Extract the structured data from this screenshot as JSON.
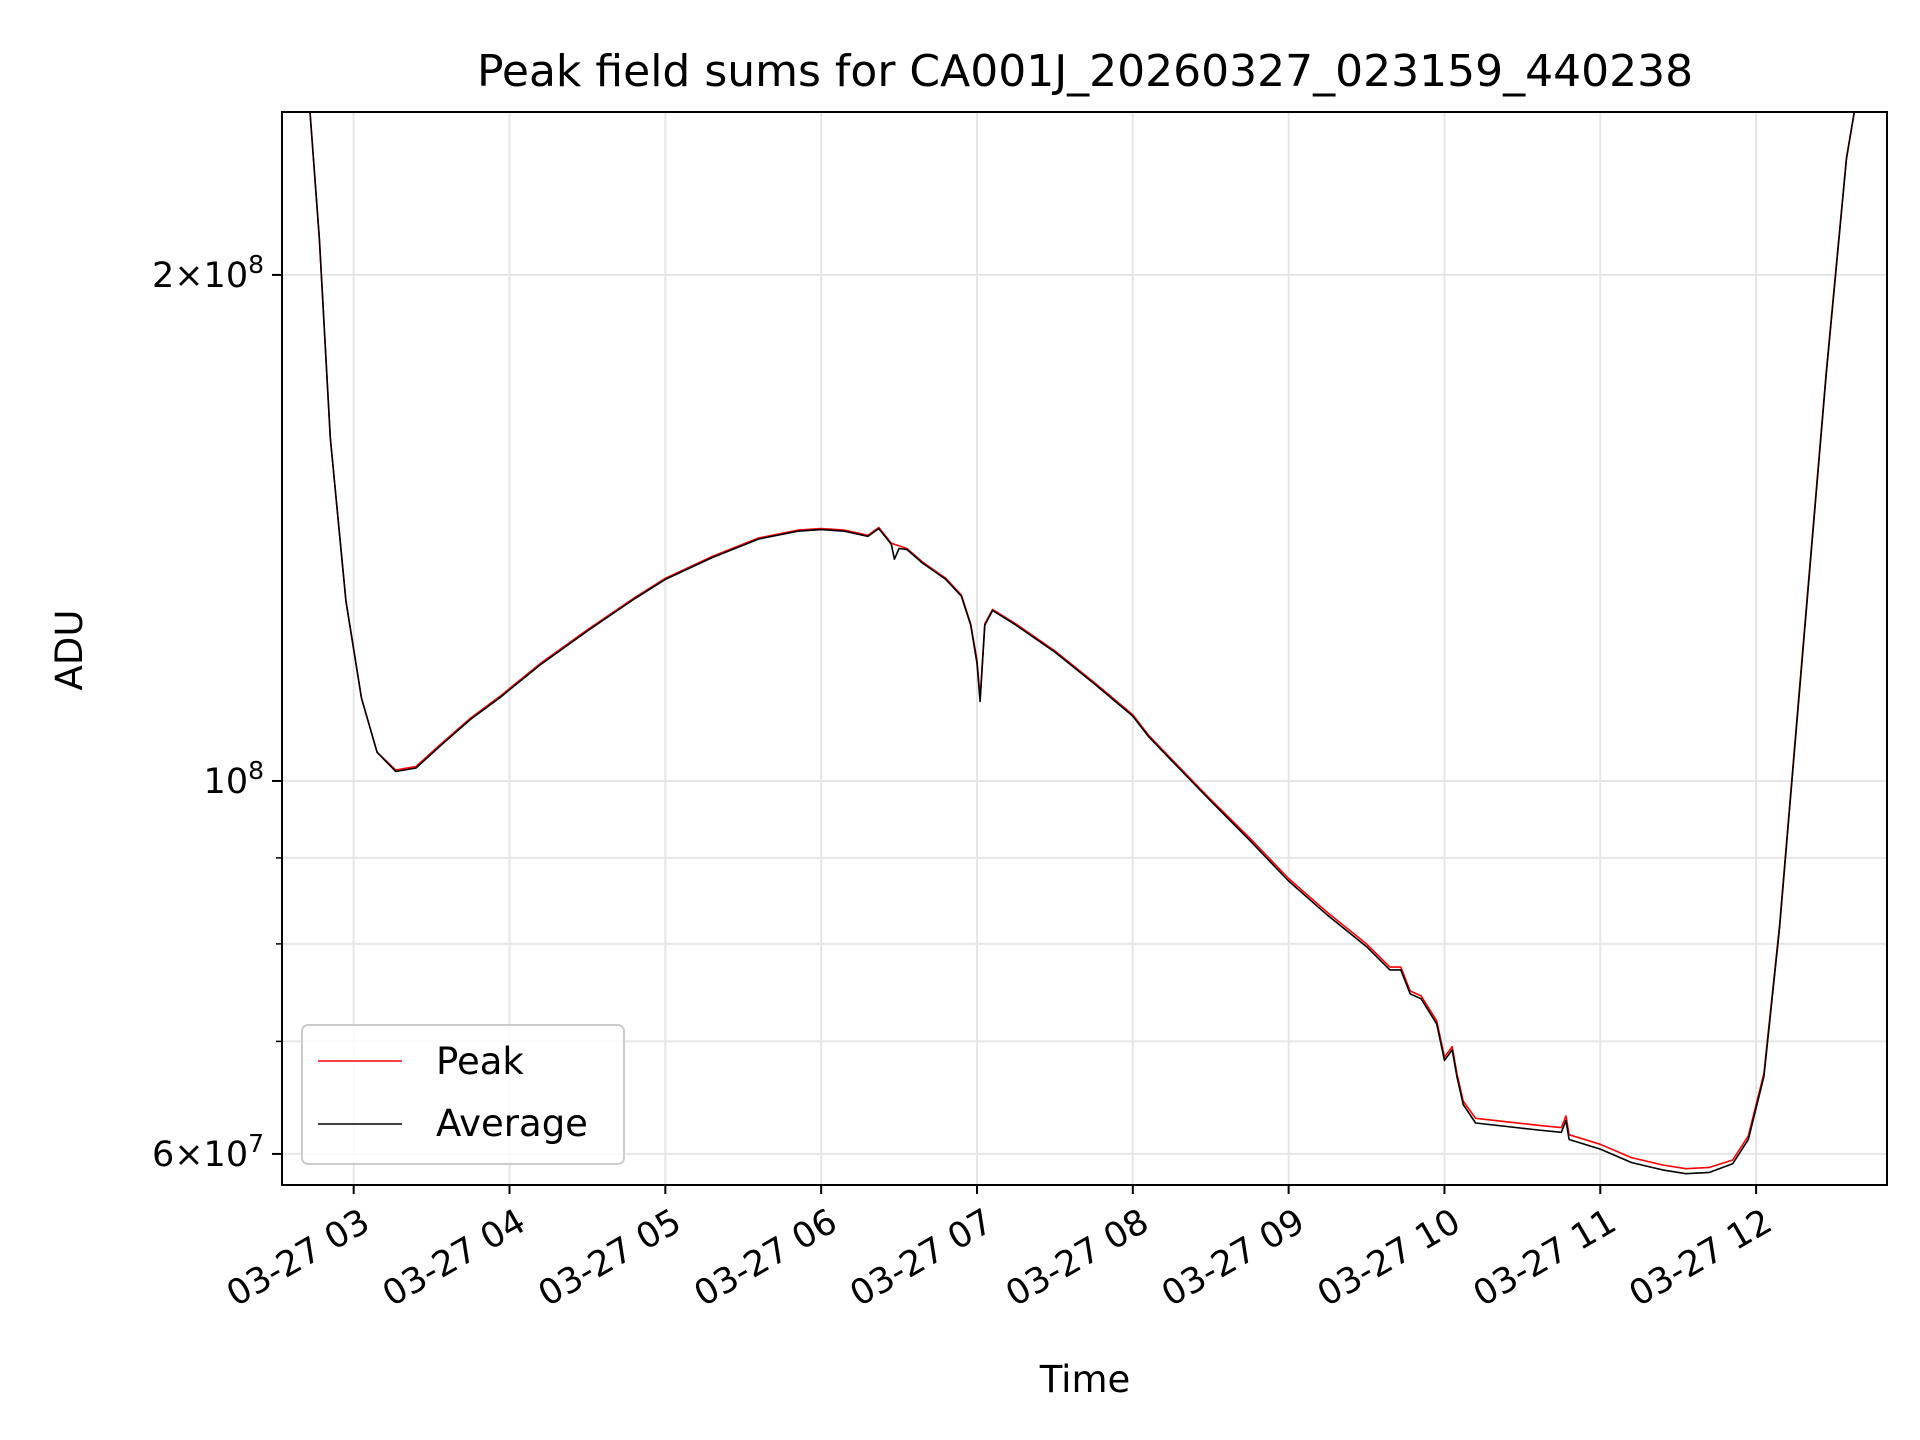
{
  "chart_data": {
    "type": "line",
    "title": "Peak field sums for CA001J_20260327_023159_440238",
    "xlabel": "Time",
    "ylabel": "ADU",
    "yscale": "log",
    "ylim": [
      57500000,
      250000000
    ],
    "xlim": [
      2.54,
      12.84
    ],
    "grid": true,
    "legend_loc": "lower-left",
    "x_ticks": [
      {
        "value": 3,
        "label": "03-27 03"
      },
      {
        "value": 4,
        "label": "03-27 04"
      },
      {
        "value": 5,
        "label": "03-27 05"
      },
      {
        "value": 6,
        "label": "03-27 06"
      },
      {
        "value": 7,
        "label": "03-27 07"
      },
      {
        "value": 8,
        "label": "03-27 08"
      },
      {
        "value": 9,
        "label": "03-27 09"
      },
      {
        "value": 10,
        "label": "03-27 10"
      },
      {
        "value": 11,
        "label": "03-27 11"
      },
      {
        "value": 12,
        "label": "03-27 12"
      }
    ],
    "y_major_ticks": [
      {
        "value": 60000000,
        "base": "6",
        "exp": "7"
      },
      {
        "value": 100000000,
        "base": "",
        "exp": "8"
      },
      {
        "value": 200000000,
        "base": "2",
        "exp": "8"
      }
    ],
    "y_minor_grid": [
      70000000,
      80000000,
      90000000
    ],
    "series": [
      {
        "name": "Peak",
        "color": "#ff0000",
        "points": [
          [
            2.72,
            250000000
          ],
          [
            2.78,
            210000000
          ],
          [
            2.85,
            160000000
          ],
          [
            2.95,
            128000000
          ],
          [
            3.05,
            112000000
          ],
          [
            3.15,
            104000000
          ],
          [
            3.27,
            101500000
          ],
          [
            3.4,
            102000000
          ],
          [
            3.55,
            105000000
          ],
          [
            3.75,
            109000000
          ],
          [
            3.95,
            112500000
          ],
          [
            4.0,
            113500000
          ],
          [
            4.2,
            117500000
          ],
          [
            4.5,
            123000000
          ],
          [
            4.8,
            128500000
          ],
          [
            5.0,
            132000000
          ],
          [
            5.3,
            136000000
          ],
          [
            5.6,
            139500000
          ],
          [
            5.85,
            141000000
          ],
          [
            6.0,
            141300000
          ],
          [
            6.15,
            141000000
          ],
          [
            6.3,
            140000000
          ],
          [
            6.37,
            141500000
          ],
          [
            6.45,
            138500000
          ],
          [
            6.55,
            137500000
          ],
          [
            6.65,
            135000000
          ],
          [
            6.8,
            132000000
          ],
          [
            6.9,
            129000000
          ],
          [
            6.96,
            124000000
          ],
          [
            7.0,
            118000000
          ],
          [
            7.02,
            112000000
          ],
          [
            7.05,
            124000000
          ],
          [
            7.1,
            126500000
          ],
          [
            7.25,
            124000000
          ],
          [
            7.5,
            119500000
          ],
          [
            7.75,
            114500000
          ],
          [
            8.0,
            109500000
          ],
          [
            8.1,
            106500000
          ],
          [
            8.25,
            103000000
          ],
          [
            8.5,
            97500000
          ],
          [
            8.75,
            92500000
          ],
          [
            9.0,
            87500000
          ],
          [
            9.25,
            83500000
          ],
          [
            9.5,
            80000000
          ],
          [
            9.65,
            77500000
          ],
          [
            9.72,
            77500000
          ],
          [
            9.78,
            75000000
          ],
          [
            9.85,
            74500000
          ],
          [
            9.95,
            72000000
          ],
          [
            10.0,
            68500000
          ],
          [
            10.05,
            69500000
          ],
          [
            10.08,
            67000000
          ],
          [
            10.12,
            64500000
          ],
          [
            10.2,
            63000000
          ],
          [
            10.4,
            62700000
          ],
          [
            10.6,
            62400000
          ],
          [
            10.75,
            62200000
          ],
          [
            10.78,
            63200000
          ],
          [
            10.8,
            61600000
          ],
          [
            11.0,
            60800000
          ],
          [
            11.2,
            59700000
          ],
          [
            11.4,
            59100000
          ],
          [
            11.55,
            58800000
          ],
          [
            11.7,
            58900000
          ],
          [
            11.85,
            59500000
          ],
          [
            11.95,
            61500000
          ],
          [
            12.05,
            67000000
          ],
          [
            12.15,
            82000000
          ],
          [
            12.3,
            120000000
          ],
          [
            12.45,
            175000000
          ],
          [
            12.58,
            235000000
          ],
          [
            12.63,
            250000000
          ]
        ]
      },
      {
        "name": "Average",
        "color": "#000000",
        "points": [
          [
            2.72,
            250000000
          ],
          [
            2.78,
            210000000
          ],
          [
            2.85,
            160000000
          ],
          [
            2.95,
            128000000
          ],
          [
            3.05,
            112000000
          ],
          [
            3.15,
            104000000
          ],
          [
            3.27,
            101300000
          ],
          [
            3.4,
            101800000
          ],
          [
            3.55,
            104800000
          ],
          [
            3.75,
            108800000
          ],
          [
            3.95,
            112300000
          ],
          [
            4.0,
            113300000
          ],
          [
            4.2,
            117300000
          ],
          [
            4.5,
            122800000
          ],
          [
            4.8,
            128300000
          ],
          [
            5.0,
            131800000
          ],
          [
            5.3,
            135800000
          ],
          [
            5.6,
            139300000
          ],
          [
            5.85,
            140800000
          ],
          [
            6.0,
            141100000
          ],
          [
            6.15,
            140800000
          ],
          [
            6.3,
            139800000
          ],
          [
            6.37,
            141300000
          ],
          [
            6.45,
            138300000
          ],
          [
            6.47,
            135500000
          ],
          [
            6.5,
            137500000
          ],
          [
            6.55,
            137300000
          ],
          [
            6.65,
            134800000
          ],
          [
            6.8,
            131800000
          ],
          [
            6.9,
            128800000
          ],
          [
            6.96,
            123800000
          ],
          [
            7.0,
            117500000
          ],
          [
            7.02,
            111500000
          ],
          [
            7.05,
            123800000
          ],
          [
            7.1,
            126300000
          ],
          [
            7.25,
            123800000
          ],
          [
            7.5,
            119300000
          ],
          [
            7.75,
            114300000
          ],
          [
            8.0,
            109300000
          ],
          [
            8.1,
            106300000
          ],
          [
            8.25,
            102800000
          ],
          [
            8.5,
            97300000
          ],
          [
            8.75,
            92200000
          ],
          [
            9.0,
            87200000
          ],
          [
            9.25,
            83200000
          ],
          [
            9.5,
            79700000
          ],
          [
            9.65,
            77200000
          ],
          [
            9.72,
            77200000
          ],
          [
            9.78,
            74700000
          ],
          [
            9.85,
            74200000
          ],
          [
            9.95,
            71700000
          ],
          [
            10.0,
            68200000
          ],
          [
            10.05,
            69200000
          ],
          [
            10.08,
            66700000
          ],
          [
            10.12,
            64200000
          ],
          [
            10.2,
            62600000
          ],
          [
            10.4,
            62300000
          ],
          [
            10.6,
            62000000
          ],
          [
            10.75,
            61800000
          ],
          [
            10.78,
            62800000
          ],
          [
            10.8,
            61200000
          ],
          [
            11.0,
            60400000
          ],
          [
            11.2,
            59300000
          ],
          [
            11.4,
            58700000
          ],
          [
            11.55,
            58400000
          ],
          [
            11.7,
            58500000
          ],
          [
            11.85,
            59200000
          ],
          [
            11.95,
            61200000
          ],
          [
            12.05,
            66700000
          ],
          [
            12.15,
            81700000
          ],
          [
            12.3,
            119500000
          ],
          [
            12.45,
            174500000
          ],
          [
            12.58,
            234500000
          ],
          [
            12.63,
            250000000
          ]
        ]
      }
    ]
  }
}
